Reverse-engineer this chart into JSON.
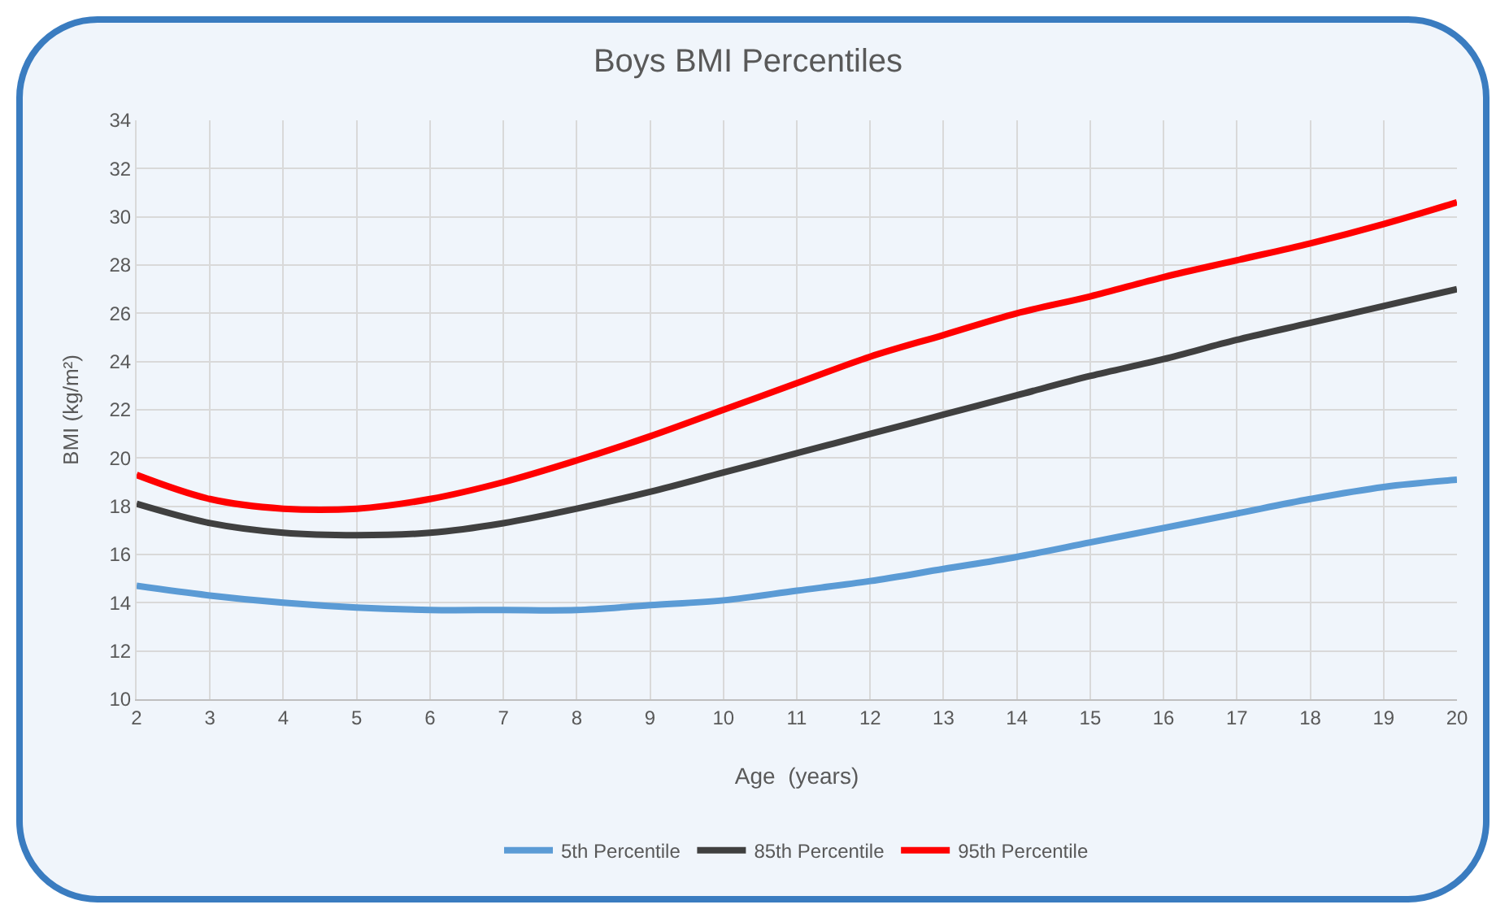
{
  "chart_data": {
    "type": "line",
    "title": "Boys BMI Percentiles",
    "xlabel": "Age  (years)",
    "ylabel": "BMI (kg/m²)",
    "x": [
      2,
      3,
      4,
      5,
      6,
      7,
      8,
      9,
      10,
      11,
      12,
      13,
      14,
      15,
      16,
      17,
      18,
      19,
      20
    ],
    "series": [
      {
        "name": "5th Percentile",
        "color": "#5b9bd5",
        "values": [
          14.7,
          14.3,
          14.0,
          13.8,
          13.7,
          13.7,
          13.7,
          13.9,
          14.1,
          14.5,
          14.9,
          15.4,
          15.9,
          16.5,
          17.1,
          17.7,
          18.3,
          18.8,
          19.1
        ]
      },
      {
        "name": "85th Percentile",
        "color": "#404040",
        "values": [
          18.1,
          17.3,
          16.9,
          16.8,
          16.9,
          17.3,
          17.9,
          18.6,
          19.4,
          20.2,
          21.0,
          21.8,
          22.6,
          23.4,
          24.1,
          24.9,
          25.6,
          26.3,
          27.0
        ]
      },
      {
        "name": "95th Percentile",
        "color": "#ff0000",
        "values": [
          19.3,
          18.3,
          17.9,
          17.9,
          18.3,
          19.0,
          19.9,
          20.9,
          22.0,
          23.1,
          24.2,
          25.1,
          26.0,
          26.7,
          27.5,
          28.2,
          28.9,
          29.7,
          30.6
        ]
      }
    ],
    "xlim": [
      2,
      20
    ],
    "xticks": [
      2,
      3,
      4,
      5,
      6,
      7,
      8,
      9,
      10,
      11,
      12,
      13,
      14,
      15,
      16,
      17,
      18,
      19,
      20
    ],
    "ylim": [
      10,
      34
    ],
    "yticks": [
      10,
      12,
      14,
      16,
      18,
      20,
      22,
      24,
      26,
      28,
      30,
      32,
      34
    ],
    "grid": true,
    "legend": "bottom",
    "marker": "none",
    "line_style": "solid"
  }
}
